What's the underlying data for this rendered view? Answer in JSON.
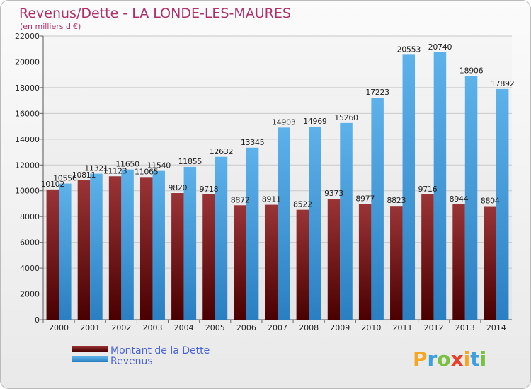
{
  "chart_data": {
    "type": "bar",
    "title": "Revenus/Dette - LA LONDE-LES-MAURES",
    "subtitle": "(en milliers d'€)",
    "categories": [
      "2000",
      "2001",
      "2002",
      "2003",
      "2004",
      "2005",
      "2006",
      "2007",
      "2008",
      "2009",
      "2010",
      "2011",
      "2012",
      "2013",
      "2014"
    ],
    "series": [
      {
        "name": "Montant de la Dette",
        "color": "#8b1a1a",
        "values": [
          10102,
          10811,
          11123,
          11065,
          9820,
          9718,
          8872,
          8911,
          8522,
          9373,
          8977,
          8823,
          9716,
          8944,
          8804
        ],
        "labels": [
          "10102",
          "10811",
          "11123",
          "11065",
          "9820",
          "9718",
          "8872",
          "8911",
          "8522",
          "9373",
          "8977",
          "8823",
          "9716",
          "8944",
          "8804"
        ]
      },
      {
        "name": "Revenus",
        "color": "#3d9ad8",
        "values": [
          10556,
          11321,
          11650,
          11540,
          11855,
          12632,
          13345,
          14903,
          14969,
          15260,
          17223,
          20553,
          20740,
          18906,
          17892
        ],
        "labels": [
          "10556",
          "11321",
          "11650",
          "11540",
          "11855",
          "12632",
          "13345",
          "14903",
          "14969",
          "15260",
          "17223",
          "20553",
          "20740",
          "18906",
          "17892"
        ]
      }
    ],
    "ylim": [
      0,
      22000
    ],
    "yticks": [
      0,
      2000,
      4000,
      6000,
      8000,
      10000,
      12000,
      14000,
      16000,
      18000,
      20000,
      22000
    ],
    "grid": true,
    "legend": "bottom-left"
  },
  "logo": {
    "letters": [
      "P",
      "r",
      "o",
      "x",
      "i",
      "t",
      "i"
    ],
    "colors": [
      "#f5a623",
      "#3aa0e0",
      "#7ac143",
      "#e8412b",
      "#f5a623",
      "#3aa0e0",
      "#7ac143"
    ]
  }
}
